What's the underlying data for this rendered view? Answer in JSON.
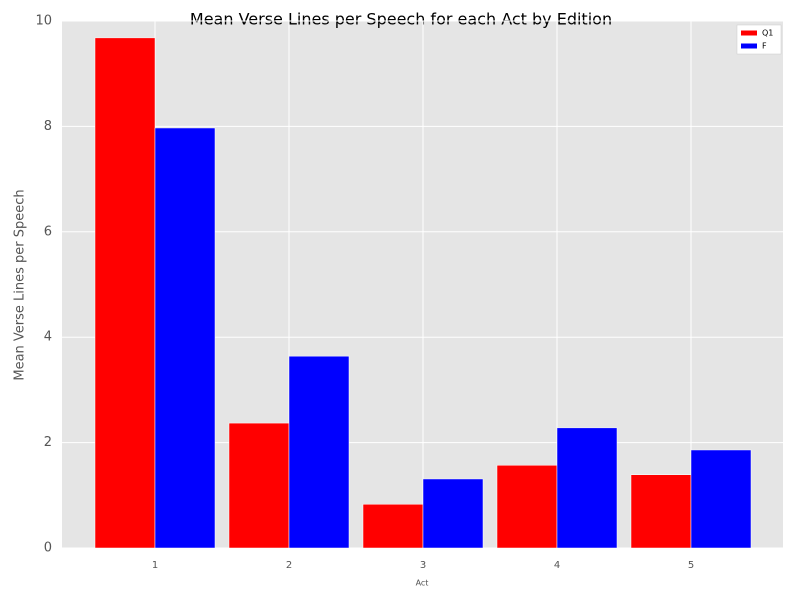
{
  "chart_data": {
    "type": "bar",
    "title": "Mean Verse Lines per Speech for each Act by Edition",
    "x_label": "Act",
    "y_label": "Mean Verse Lines per Speech",
    "categories": [
      "1",
      "2",
      "3",
      "4",
      "5"
    ],
    "series": [
      {
        "name": "Q1",
        "color": "#ff0000",
        "values": [
          9.68,
          2.37,
          0.83,
          1.57,
          1.39
        ]
      },
      {
        "name": "F",
        "color": "#0000ff",
        "values": [
          7.97,
          3.64,
          1.31,
          2.28,
          1.86
        ]
      }
    ],
    "ylim": [
      0,
      10
    ],
    "yticks": [
      0,
      2,
      4,
      6,
      8,
      10
    ],
    "grid": true,
    "legend": "upper right"
  }
}
